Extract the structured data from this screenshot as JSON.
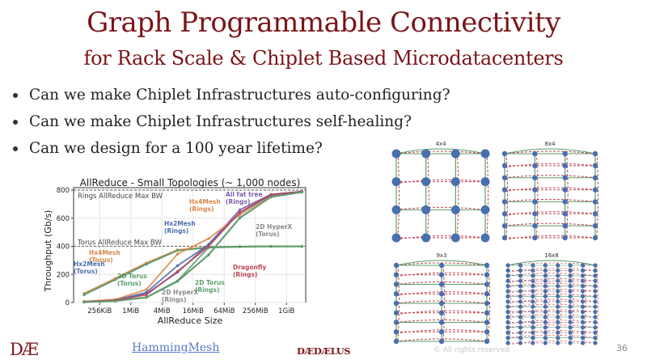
{
  "slide": {
    "title": "Graph Programmable Connectivity",
    "subtitle": "for Rack Scale & Chiplet Based Microdatacenters",
    "bullets": [
      "Can we make Chiplet Infrastructures auto-configuring?",
      "Can we make Chiplet Infrastructures self-healing?",
      "Can we design for a 100 year lifetime?"
    ],
    "title_color": "#7a1418"
  },
  "footer": {
    "logo": "DÆ",
    "link": "HammingMesh",
    "brand": "DÆDÆLUS",
    "copyright": "© All rights reserved",
    "page_number": "36"
  },
  "diagram": {
    "panels": [
      {
        "label": "4x4",
        "rows": 4,
        "cols": 4
      },
      {
        "label": "8x4",
        "rows": 8,
        "cols": 4
      },
      {
        "label": "9x3",
        "rows": 9,
        "cols": 3
      },
      {
        "label": "16x8",
        "rows": 16,
        "cols": 8
      }
    ],
    "colors": {
      "node": "#4a6fae",
      "ring": "#5a9e6a",
      "torus": "#c0404c"
    }
  },
  "chart_data": {
    "type": "line",
    "title": "AllReduce - Small Topologies (~ 1,000 nodes)",
    "xlabel": "AllReduce Size",
    "ylabel": "Throughput (Gb/s)",
    "ylim": [
      0,
      820
    ],
    "yticks": [
      0,
      200,
      400,
      600,
      800
    ],
    "xticks": [
      "256KiB",
      "1MiB",
      "4MiB",
      "16MiB",
      "64MiB",
      "256MiB",
      "1GiB"
    ],
    "x": [
      "128KiB",
      "512KiB",
      "2MiB",
      "8MiB",
      "32MiB",
      "128MiB",
      "512MiB",
      "2GiB"
    ],
    "grid": true,
    "reference_lines": [
      {
        "label": "Rings AllReduce Max BW",
        "value": 800
      },
      {
        "label": "Torus AllReduce Max BW",
        "value": 400
      }
    ],
    "series": [
      {
        "name": "Hx2Mesh (Torus)",
        "color": "#4a6fae",
        "values": [
          58,
          165,
          275,
          372,
          392,
          398,
          400,
          400
        ]
      },
      {
        "name": "Hx4Mesh (Torus)",
        "color": "#d9874a",
        "values": [
          65,
          172,
          282,
          375,
          394,
          398,
          400,
          400
        ]
      },
      {
        "name": "2D Torus (Torus)",
        "color": "#5a9e6a",
        "values": [
          55,
          162,
          272,
          370,
          390,
          396,
          398,
          398
        ]
      },
      {
        "name": "2D HyperX (Torus)",
        "color": "#5a9e6a",
        "values": [
          3,
          12,
          38,
          155,
          392,
          398,
          400,
          400
        ]
      },
      {
        "name": "All fat tree (Rings)",
        "color": "#7b5cae",
        "values": [
          5,
          18,
          62,
          215,
          415,
          660,
          770,
          790
        ]
      },
      {
        "name": "Hx4Mesh (Rings)",
        "color": "#d9874a",
        "values": [
          8,
          22,
          92,
          345,
          455,
          625,
          760,
          790
        ]
      },
      {
        "name": "Hx2Mesh (Rings)",
        "color": "#4a6fae",
        "values": [
          5,
          16,
          72,
          262,
          412,
          640,
          765,
          790
        ]
      },
      {
        "name": "Dragonfly (Rings)",
        "color": "#b8485a",
        "values": [
          5,
          15,
          55,
          222,
          400,
          642,
          768,
          790
        ]
      },
      {
        "name": "2D HyperX (Rings)",
        "color": "#8a8a8a",
        "values": [
          3,
          10,
          36,
          152,
          342,
          605,
          752,
          785
        ]
      },
      {
        "name": "2D Torus (Rings)",
        "color": "#5a9e6a",
        "values": [
          3,
          10,
          35,
          150,
          338,
          600,
          750,
          785
        ]
      }
    ],
    "annotations": [
      {
        "text": "Hx4Mesh\n(Rings)",
        "color": "#d9874a"
      },
      {
        "text": "All fat tree\n(Rings)",
        "color": "#7b5cae"
      },
      {
        "text": "Hx2Mesh\n(Rings)",
        "color": "#4a6fae"
      },
      {
        "text": "2D HyperX\n(Torus)",
        "color": "#8a8a8a"
      },
      {
        "text": "Hx4Mesh\n(Torus)",
        "color": "#d9874a"
      },
      {
        "text": "Hx2Mesh\n(Torus)",
        "color": "#4a6fae"
      },
      {
        "text": "Dragonfly\n(Rings)",
        "color": "#b8485a"
      },
      {
        "text": "2D Torus\n(Torus)",
        "color": "#5a9e6a"
      },
      {
        "text": "2D Torus\n(Rings)",
        "color": "#5a9e6a"
      },
      {
        "text": "2D HyperX\n(Rings)",
        "color": "#8a8a8a"
      }
    ]
  }
}
